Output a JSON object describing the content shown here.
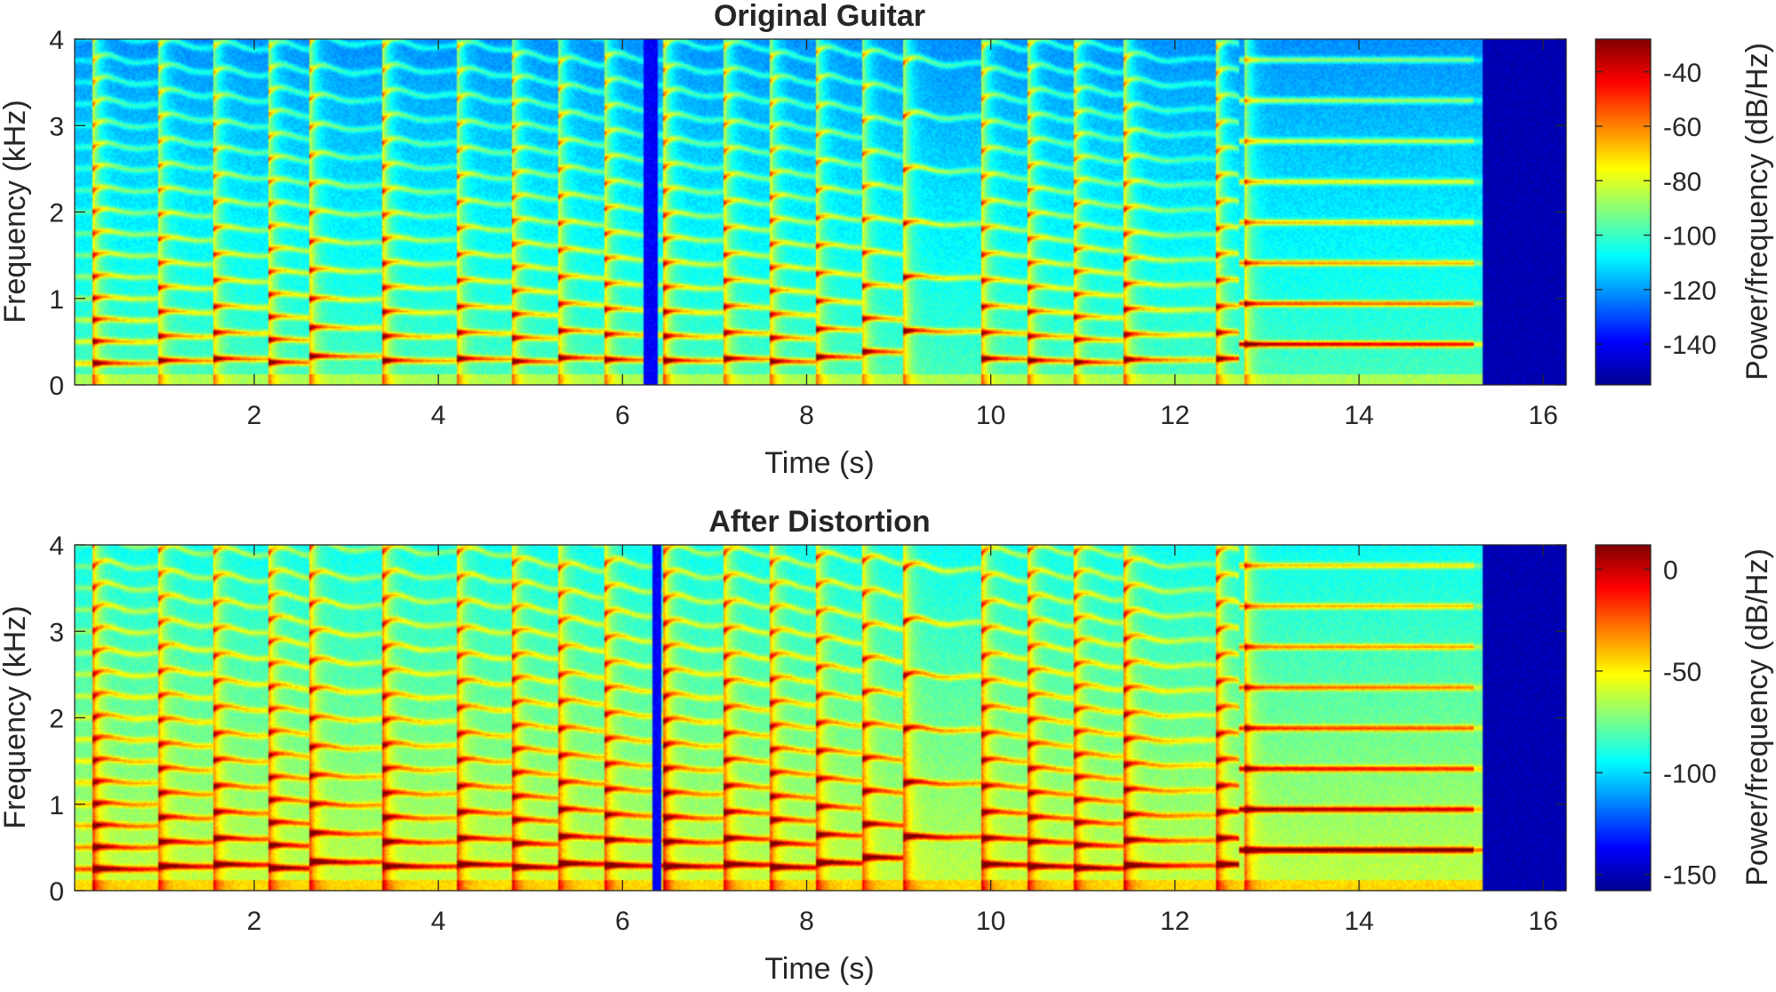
{
  "figure": {
    "colormap": "jet",
    "colormap_stops": [
      "#00008f",
      "#0000ff",
      "#0080ff",
      "#00ffff",
      "#80ff80",
      "#ffff00",
      "#ff8000",
      "#ff0000",
      "#800000"
    ]
  },
  "chart_data": [
    {
      "type": "heatmap",
      "title": "Original Guitar",
      "xlabel": "Time (s)",
      "ylabel": "Frequency (kHz)",
      "colorbar_label": "Power/frequency (dB/Hz)",
      "xlim": [
        0.05,
        16.25
      ],
      "ylim": [
        0,
        4
      ],
      "x_ticks": [
        2,
        4,
        6,
        8,
        10,
        12,
        14,
        16
      ],
      "y_ticks": [
        0,
        1,
        2,
        3,
        4
      ],
      "clim": [
        -155,
        -28
      ],
      "colorbar_ticks": [
        -40,
        -60,
        -80,
        -100,
        -120,
        -140
      ],
      "note_onsets_s": [
        0.25,
        0.95,
        1.55,
        2.15,
        2.6,
        3.4,
        4.2,
        4.8,
        5.3,
        5.8,
        6.45,
        7.1,
        7.6,
        8.1,
        8.6,
        9.05,
        9.9,
        10.4,
        10.9,
        11.45,
        12.45,
        12.75
      ],
      "fundamentals_khz": [
        0.25,
        0.28,
        0.3,
        0.26,
        0.33,
        0.28,
        0.3,
        0.27,
        0.31,
        0.29,
        0.28,
        0.3,
        0.27,
        0.32,
        0.38,
        0.62,
        0.3,
        0.28,
        0.26,
        0.29,
        0.3,
        0.47
      ],
      "silent_intervals_s": [
        [
          6.22,
          6.38
        ],
        [
          15.35,
          16.25
        ]
      ],
      "sustained_note": {
        "start_s": 12.7,
        "end_s": 15.25,
        "fundamental_khz": 0.47
      }
    },
    {
      "type": "heatmap",
      "title": "After Distortion",
      "xlabel": "Time (s)",
      "ylabel": "Frequency (kHz)",
      "colorbar_label": "Power/frequency (dB/Hz)",
      "xlim": [
        0.05,
        16.25
      ],
      "ylim": [
        0,
        4
      ],
      "x_ticks": [
        2,
        4,
        6,
        8,
        10,
        12,
        14,
        16
      ],
      "y_ticks": [
        0,
        1,
        2,
        3,
        4
      ],
      "clim": [
        -158,
        12
      ],
      "colorbar_ticks": [
        0,
        -50,
        -100,
        -150
      ],
      "note_onsets_s": [
        0.25,
        0.95,
        1.55,
        2.15,
        2.6,
        3.4,
        4.2,
        4.8,
        5.3,
        5.8,
        6.45,
        7.1,
        7.6,
        8.1,
        8.6,
        9.05,
        9.9,
        10.4,
        10.9,
        11.45,
        12.45,
        12.75
      ],
      "fundamentals_khz": [
        0.25,
        0.28,
        0.3,
        0.26,
        0.33,
        0.28,
        0.3,
        0.27,
        0.31,
        0.29,
        0.28,
        0.3,
        0.27,
        0.32,
        0.38,
        0.62,
        0.3,
        0.28,
        0.26,
        0.29,
        0.3,
        0.47
      ],
      "silent_intervals_s": [
        [
          6.32,
          6.42
        ],
        [
          15.35,
          16.25
        ]
      ],
      "sustained_note": {
        "start_s": 12.7,
        "end_s": 15.25,
        "fundamental_khz": 0.47
      }
    }
  ]
}
